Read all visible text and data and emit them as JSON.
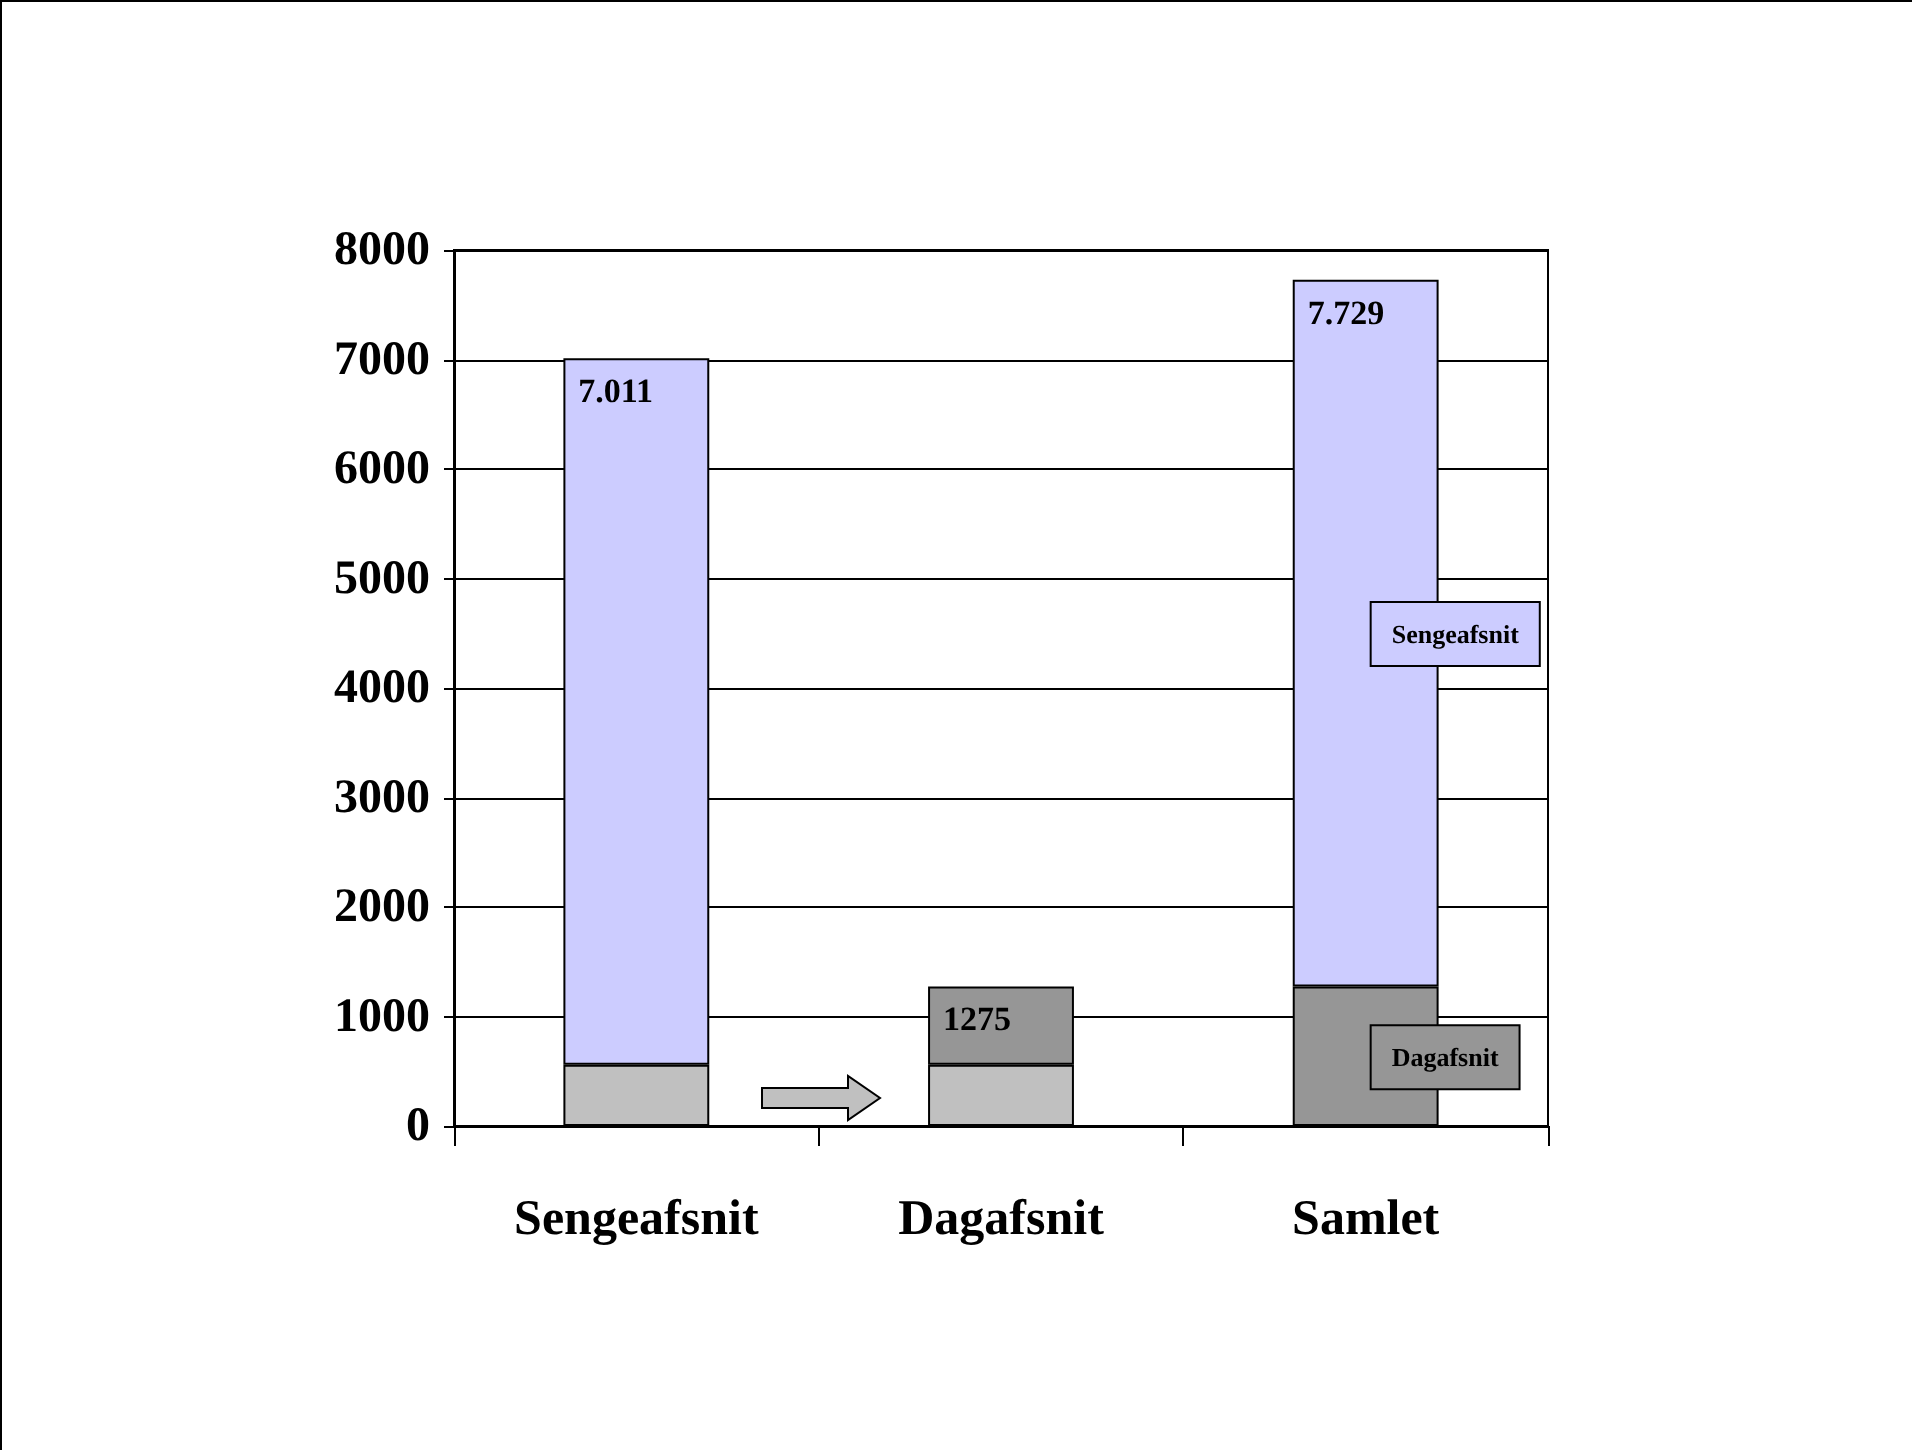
{
  "chart_data": {
    "type": "bar",
    "stacked": true,
    "categories": [
      "Sengeafsnit",
      "Dagafsnit",
      "Samlet"
    ],
    "series": [
      {
        "color": "#c0c0c0",
        "values": [
          560,
          560,
          null
        ]
      },
      {
        "name": "Dagafsnit",
        "color": "#969696",
        "values": [
          null,
          715,
          1275
        ]
      },
      {
        "name": "Sengeafsnit",
        "color": "#ccccff",
        "values": [
          6451,
          null,
          6454
        ]
      }
    ],
    "totals": [
      "7.011",
      "1275",
      "7.729"
    ],
    "ylim": [
      0,
      8000
    ],
    "yticks": [
      0,
      1000,
      2000,
      3000,
      4000,
      5000,
      6000,
      7000,
      8000
    ],
    "grid": "y",
    "legend": false
  }
}
